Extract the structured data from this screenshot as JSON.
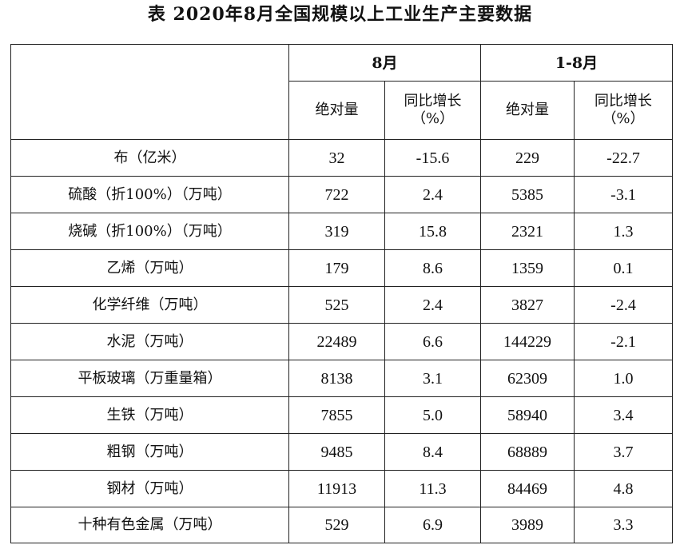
{
  "title": "表 2020年8月全国规模以上工业生产主要数据",
  "header": {
    "corner": "",
    "period_month": "8月",
    "period_ytd": "1-8月",
    "abs_label": "绝对量",
    "yoy_label_line1": "同比增长",
    "yoy_label_line2": "（%）"
  },
  "rows": [
    {
      "product": "布（亿米）",
      "m_abs": "32",
      "m_yoy": "-15.6",
      "y_abs": "229",
      "y_yoy": "-22.7"
    },
    {
      "product": "硫酸（折100%）（万吨）",
      "m_abs": "722",
      "m_yoy": "2.4",
      "y_abs": "5385",
      "y_yoy": "-3.1"
    },
    {
      "product": "烧碱（折100%）（万吨）",
      "m_abs": "319",
      "m_yoy": "15.8",
      "y_abs": "2321",
      "y_yoy": "1.3"
    },
    {
      "product": "乙烯（万吨）",
      "m_abs": "179",
      "m_yoy": "8.6",
      "y_abs": "1359",
      "y_yoy": "0.1"
    },
    {
      "product": "化学纤维（万吨）",
      "m_abs": "525",
      "m_yoy": "2.4",
      "y_abs": "3827",
      "y_yoy": "-2.4"
    },
    {
      "product": "水泥（万吨）",
      "m_abs": "22489",
      "m_yoy": "6.6",
      "y_abs": "144229",
      "y_yoy": "-2.1"
    },
    {
      "product": "平板玻璃（万重量箱）",
      "m_abs": "8138",
      "m_yoy": "3.1",
      "y_abs": "62309",
      "y_yoy": "1.0"
    },
    {
      "product": "生铁（万吨）",
      "m_abs": "7855",
      "m_yoy": "5.0",
      "y_abs": "58940",
      "y_yoy": "3.4"
    },
    {
      "product": "粗钢（万吨）",
      "m_abs": "9485",
      "m_yoy": "8.4",
      "y_abs": "68889",
      "y_yoy": "3.7"
    },
    {
      "product": "钢材（万吨）",
      "m_abs": "11913",
      "m_yoy": "11.3",
      "y_abs": "84469",
      "y_yoy": "4.8"
    },
    {
      "product": "十种有色金属（万吨）",
      "m_abs": "529",
      "m_yoy": "6.9",
      "y_abs": "3989",
      "y_yoy": "3.3"
    }
  ]
}
